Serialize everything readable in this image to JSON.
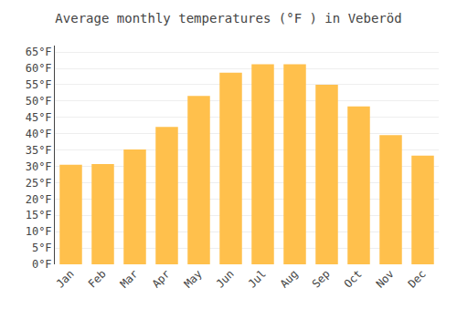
{
  "chart_data": {
    "type": "bar",
    "title": "Average monthly temperatures (°F ) in Veberöd",
    "categories": [
      "Jan",
      "Feb",
      "Mar",
      "Apr",
      "May",
      "Jun",
      "Jul",
      "Aug",
      "Sep",
      "Oct",
      "Nov",
      "Dec"
    ],
    "values": [
      30.5,
      30.7,
      35.2,
      42.1,
      51.6,
      58.7,
      61.3,
      61.3,
      55.0,
      48.4,
      39.6,
      33.3
    ],
    "color": "#FFC04C",
    "ylim": [
      0,
      67
    ],
    "yticks": [
      {
        "value": 0,
        "label": "0°F"
      },
      {
        "value": 5,
        "label": "5°F"
      },
      {
        "value": 10,
        "label": "10°F"
      },
      {
        "value": 15,
        "label": "15°F"
      },
      {
        "value": 20,
        "label": "20°F"
      },
      {
        "value": 25,
        "label": "25°F"
      },
      {
        "value": 30,
        "label": "30°F"
      },
      {
        "value": 35,
        "label": "35°F"
      },
      {
        "value": 40,
        "label": "40°F"
      },
      {
        "value": 45,
        "label": "45°F"
      },
      {
        "value": 50,
        "label": "50°F"
      },
      {
        "value": 55,
        "label": "55°F"
      },
      {
        "value": 60,
        "label": "60°F"
      },
      {
        "value": 65,
        "label": "65°F"
      }
    ],
    "grid": true
  }
}
